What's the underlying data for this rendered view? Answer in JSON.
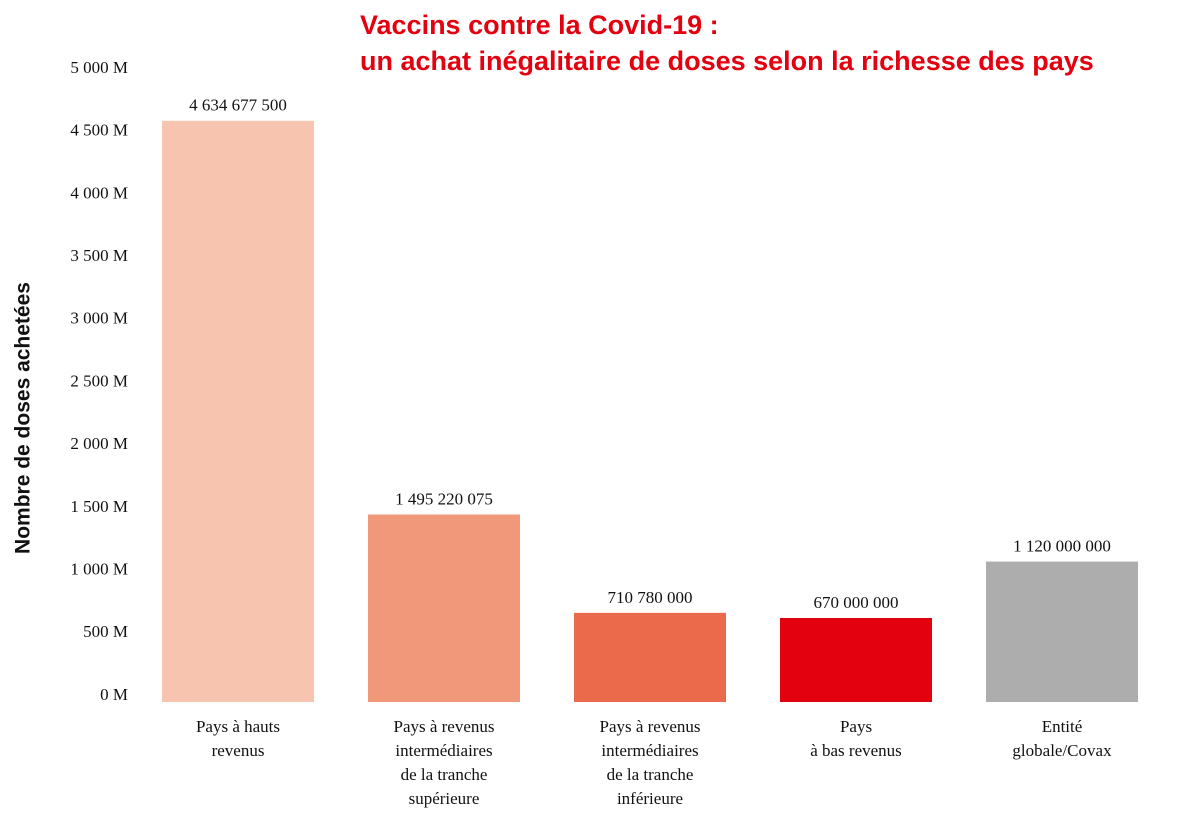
{
  "chart_data": {
    "type": "bar",
    "title": [
      "Vaccins contre la Covid-19 :",
      "un achat inégalitaire de doses selon la richesse des pays"
    ],
    "y_label": "Nombre de doses achetées",
    "categories": [
      [
        "Pays à hauts",
        "revenus"
      ],
      [
        "Pays à revenus",
        "intermédiaires",
        "de la tranche",
        "supérieure"
      ],
      [
        "Pays à revenus",
        "intermédiaires",
        "de la tranche",
        "inférieure"
      ],
      [
        "Pays",
        "à bas revenus"
      ],
      [
        "Entité",
        "globale/Covax"
      ]
    ],
    "values": [
      4634677500,
      1495220075,
      710780000,
      670000000,
      1120000000
    ],
    "value_labels": [
      "4 634 677 500",
      "1 495 220 075",
      "710 780 000",
      "670 000 000",
      "1 120 000 000"
    ],
    "colors": [
      "#f7c4b0",
      "#f2987a",
      "#ec6a4c",
      "#e3000f",
      "#adadad"
    ],
    "ylim": [
      0,
      5000000000
    ],
    "yticks": [
      {
        "value": 0,
        "label": "0 M"
      },
      {
        "value": 500000000,
        "label": "500 M"
      },
      {
        "value": 1000000000,
        "label": "1 000 M"
      },
      {
        "value": 1500000000,
        "label": "1 500 M"
      },
      {
        "value": 2000000000,
        "label": "2 000 M"
      },
      {
        "value": 2500000000,
        "label": "2 500 M"
      },
      {
        "value": 3000000000,
        "label": "3 000 M"
      },
      {
        "value": 3500000000,
        "label": "3 500 M"
      },
      {
        "value": 4000000000,
        "label": "4 000 M"
      },
      {
        "value": 4500000000,
        "label": "4 500 M"
      },
      {
        "value": 5000000000,
        "label": "5 000 M"
      }
    ],
    "grid": false
  }
}
